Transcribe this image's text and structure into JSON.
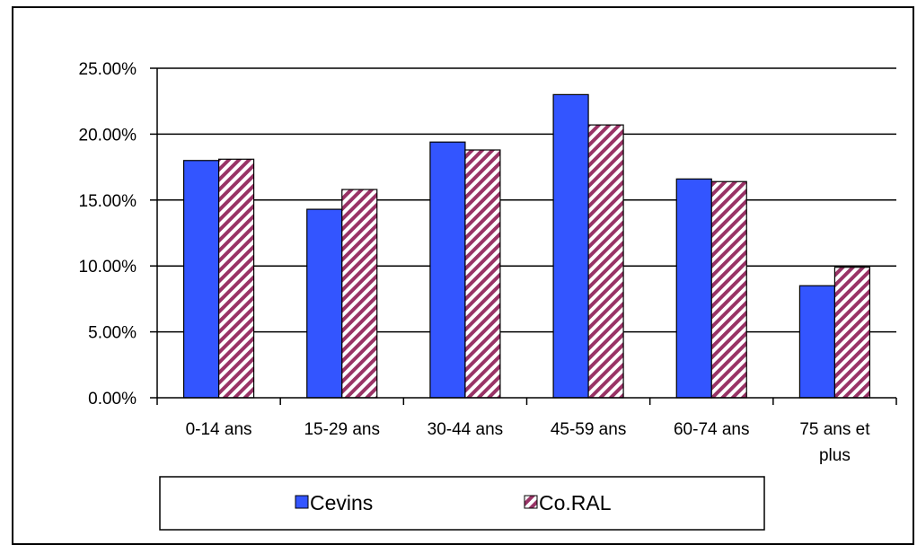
{
  "chart_data": {
    "type": "bar",
    "categories": [
      "0-14 ans",
      "15-29 ans",
      "30-44 ans",
      "45-59 ans",
      "60-74 ans",
      "75 ans et plus"
    ],
    "series": [
      {
        "name": "Cevins",
        "values": [
          18.0,
          14.3,
          19.4,
          23.0,
          16.6,
          8.5
        ],
        "color": "#3355ff",
        "pattern": "solid"
      },
      {
        "name": "Co.RAL",
        "values": [
          18.1,
          15.8,
          18.8,
          20.7,
          16.4,
          9.9
        ],
        "color": "#993366",
        "pattern": "diagonal-hatch"
      }
    ],
    "ylim": [
      0,
      25
    ],
    "yticks": [
      "0.00%",
      "5.00%",
      "10.00%",
      "15.00%",
      "20.00%",
      "25.00%"
    ],
    "ytick_values": [
      0,
      5,
      10,
      15,
      20,
      25
    ],
    "grid": true,
    "legend": "bottom"
  }
}
